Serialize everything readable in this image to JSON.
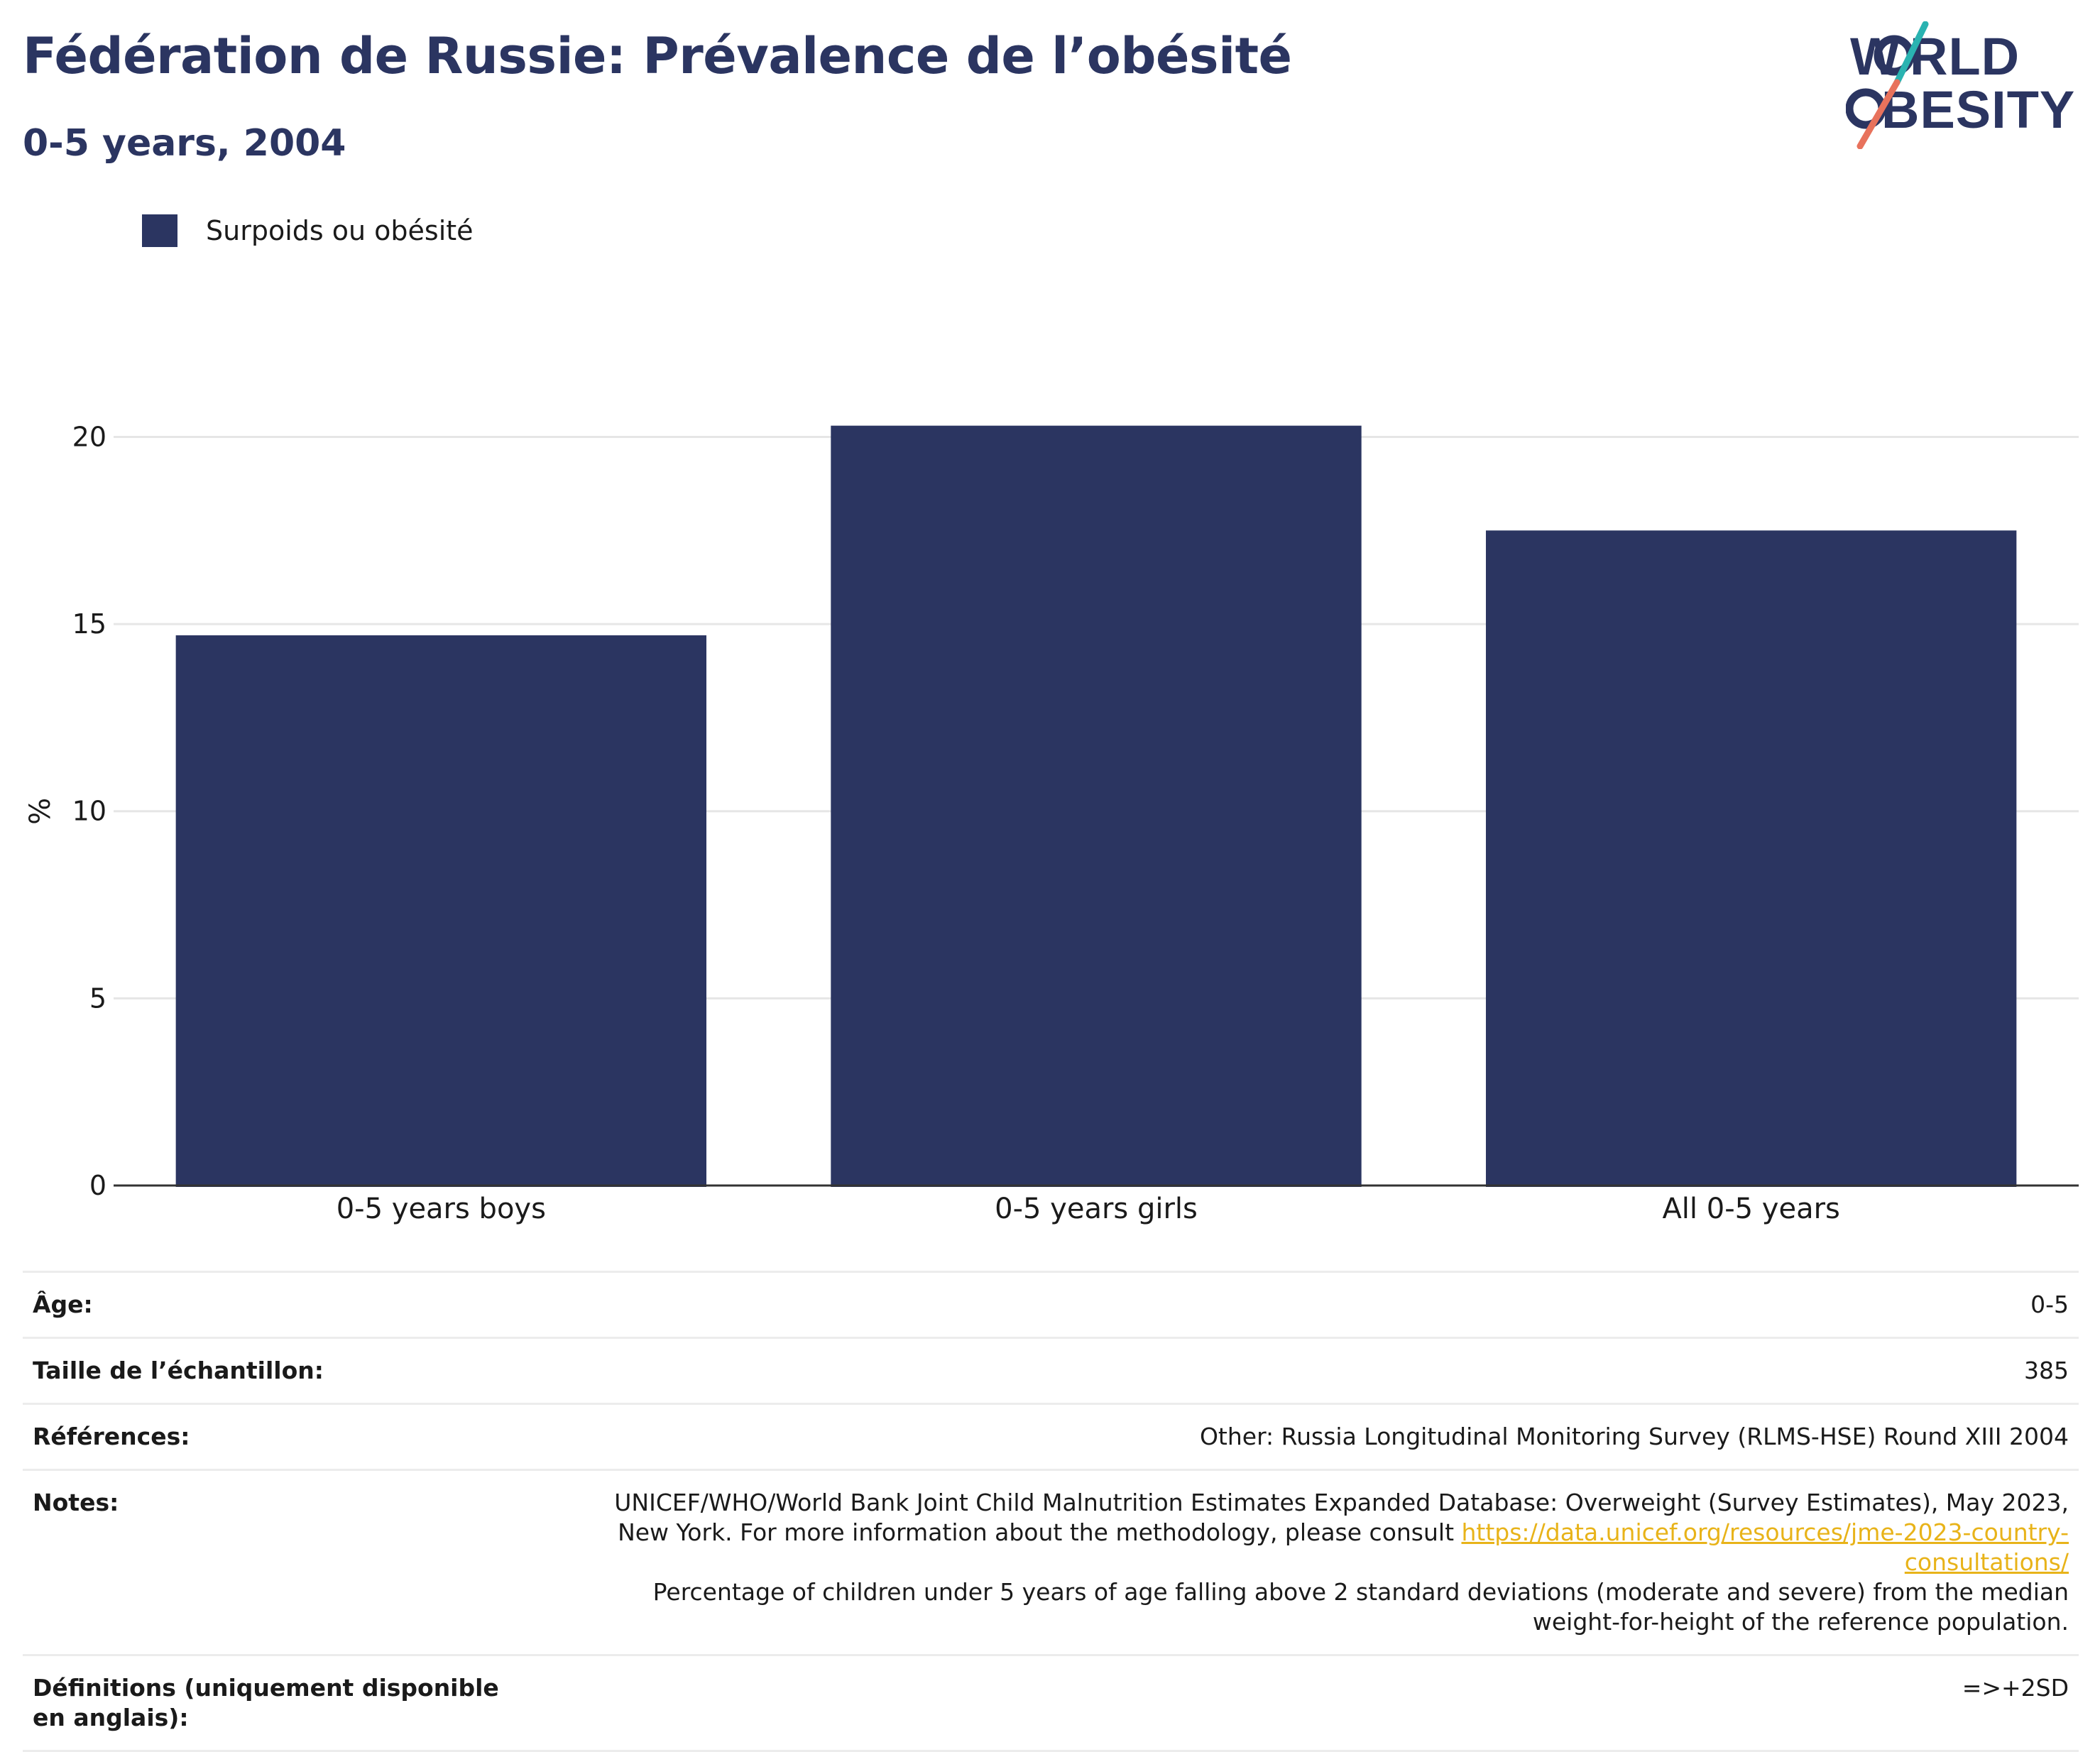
{
  "header": {
    "title": "Fédération de Russie: Prévalence de l’obésité",
    "subtitle": "0-5 years, 2004"
  },
  "logo": {
    "line1": "WORLD",
    "line2": "OBESITY",
    "accent_colors": [
      "#2ab3b1",
      "#e8725c"
    ]
  },
  "colors": {
    "bar": "#2b3561",
    "title": "#2b3561",
    "link": "#e8b319",
    "grid": "#e6e6e6",
    "axis": "#333333"
  },
  "chart_data": {
    "type": "bar",
    "categories": [
      "0-5 years boys",
      "0-5 years girls",
      "All 0-5 years"
    ],
    "series": [
      {
        "name": "Surpoids ou obésité",
        "values": [
          14.7,
          20.3,
          17.5
        ]
      }
    ],
    "ylabel": "%",
    "xlabel": "",
    "ylim": [
      0,
      22
    ],
    "yticks": [
      0,
      5,
      10,
      15,
      20
    ],
    "grid": true,
    "legend": "top-left"
  },
  "meta": {
    "age_label": "Âge:",
    "age_value": "0-5",
    "sample_label": "Taille de l’échantillon:",
    "sample_value": "385",
    "refs_label": "Références:",
    "refs_value": "Other: Russia Longitudinal Monitoring Survey (RLMS-HSE) Round XIII 2004",
    "notes_label": "Notes:",
    "notes_text1": "UNICEF/WHO/World Bank Joint Child Malnutrition Estimates Expanded Database: Overweight (Survey Estimates), May 2023, New York. For more information about the methodology, please consult ",
    "notes_link": "https://data.unicef.org/resources/jme-2023-country-consultations/",
    "notes_text2": "Percentage of children under 5 years of age falling above 2 standard deviations (moderate and severe) from the median weight-for-height of the reference population.",
    "defs_label": "Définitions (uniquement disponible en anglais):",
    "defs_value": "=>+2SD"
  }
}
